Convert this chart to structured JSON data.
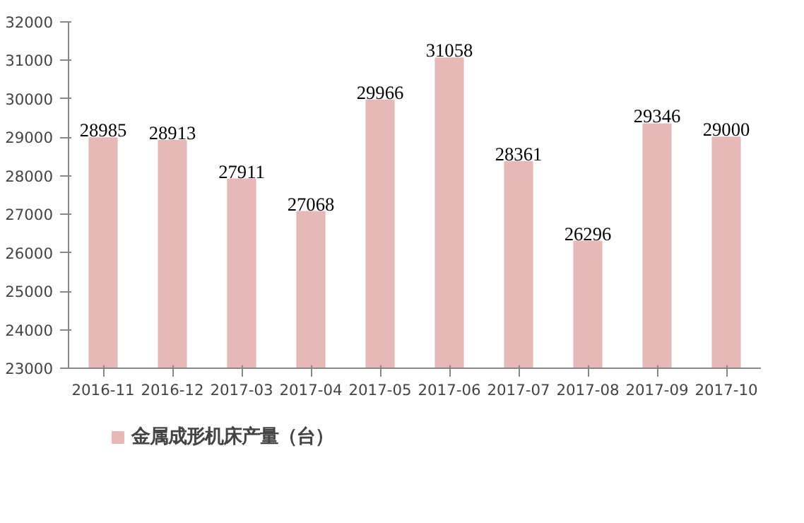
{
  "chart_data": {
    "type": "bar",
    "categories": [
      "2016-11",
      "2016-12",
      "2017-03",
      "2017-04",
      "2017-05",
      "2017-06",
      "2017-07",
      "2017-08",
      "2017-09",
      "2017-10"
    ],
    "series": [
      {
        "name": "金属成形机床产量（台）",
        "color": "#e6b9b8",
        "values": [
          28985,
          28913,
          27911,
          27068,
          29966,
          31058,
          28361,
          26296,
          29346,
          29000
        ]
      }
    ],
    "ylim": [
      23000,
      32000
    ],
    "yticks": [
      23000,
      24000,
      25000,
      26000,
      27000,
      28000,
      29000,
      30000,
      31000,
      32000
    ],
    "data_labels": true,
    "grid": false,
    "legend": "bottom"
  }
}
